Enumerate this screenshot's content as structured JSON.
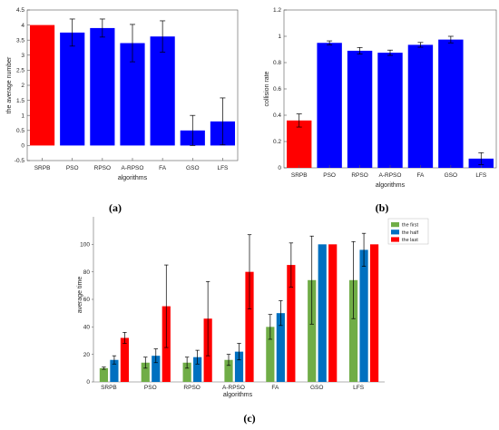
{
  "chart_data": [
    {
      "type": "bar",
      "panel_label": "(a)",
      "categories": [
        "SRPB",
        "PSO",
        "RPSO",
        "A-RPSO",
        "FA",
        "GSO",
        "LFS"
      ],
      "values": [
        4.0,
        3.75,
        3.9,
        3.4,
        3.62,
        0.5,
        0.8
      ],
      "errors": [
        0.0,
        0.45,
        0.3,
        0.62,
        0.52,
        0.5,
        0.78
      ],
      "bar_colors": [
        "#ff0000",
        "#0000ff",
        "#0000ff",
        "#0000ff",
        "#0000ff",
        "#0000ff",
        "#0000ff"
      ],
      "ylim": [
        -0.5,
        4.5
      ],
      "yticks": [
        -0.5,
        0,
        0.5,
        1,
        1.5,
        2,
        2.5,
        3,
        3.5,
        4,
        4.5
      ],
      "ytick_labels": [
        "-0.5",
        "0",
        "0.5",
        "1",
        "1.5",
        "2",
        "2.5",
        "3",
        "3.5",
        "4",
        "4.5"
      ],
      "xlabel": "algorithms",
      "ylabel": "the average number"
    },
    {
      "type": "bar",
      "panel_label": "(b)",
      "categories": [
        "SRPB",
        "PSO",
        "RPSO",
        "A-RPSO",
        "FA",
        "GSO",
        "LFS"
      ],
      "values": [
        0.36,
        0.95,
        0.89,
        0.875,
        0.935,
        0.975,
        0.07
      ],
      "errors": [
        0.05,
        0.015,
        0.025,
        0.02,
        0.018,
        0.025,
        0.045
      ],
      "bar_colors": [
        "#ff0000",
        "#0000ff",
        "#0000ff",
        "#0000ff",
        "#0000ff",
        "#0000ff",
        "#0000ff"
      ],
      "ylim": [
        0,
        1.2
      ],
      "yticks": [
        0,
        0.2,
        0.4,
        0.6,
        0.8,
        1,
        1.2
      ],
      "ytick_labels": [
        "0",
        "0.2",
        "0.4",
        "0.6",
        "0.8",
        "1",
        "1.2"
      ],
      "xlabel": "algorithms",
      "ylabel": "collision rate"
    },
    {
      "type": "bar",
      "panel_label": "(c)",
      "categories": [
        "SRPB",
        "PSO",
        "RPSO",
        "A-RPSO",
        "FA",
        "GSO",
        "LFS"
      ],
      "series": [
        {
          "name": "the first",
          "color": "#70ad47",
          "values": [
            10,
            14,
            14,
            16,
            40,
            74,
            74
          ],
          "errors": [
            0.8,
            4,
            4,
            4,
            9,
            32,
            28
          ]
        },
        {
          "name": "the half",
          "color": "#0070c0",
          "values": [
            16,
            19,
            18,
            22,
            50,
            100,
            96
          ],
          "errors": [
            3,
            5,
            5,
            6,
            9,
            0.5,
            12
          ]
        },
        {
          "name": "the last",
          "color": "#ff0000",
          "values": [
            32,
            55,
            46,
            80,
            85,
            100,
            100
          ],
          "errors": [
            4,
            30,
            27,
            27,
            16,
            0.5,
            0.5
          ]
        }
      ],
      "ylim": [
        0,
        120
      ],
      "yticks": [
        0,
        20,
        40,
        60,
        80,
        100
      ],
      "ytick_labels": [
        "0",
        "20",
        "40",
        "60",
        "80",
        "100"
      ],
      "xlabel": "algorithms",
      "ylabel": "average time",
      "legend_position": "top-right"
    }
  ]
}
